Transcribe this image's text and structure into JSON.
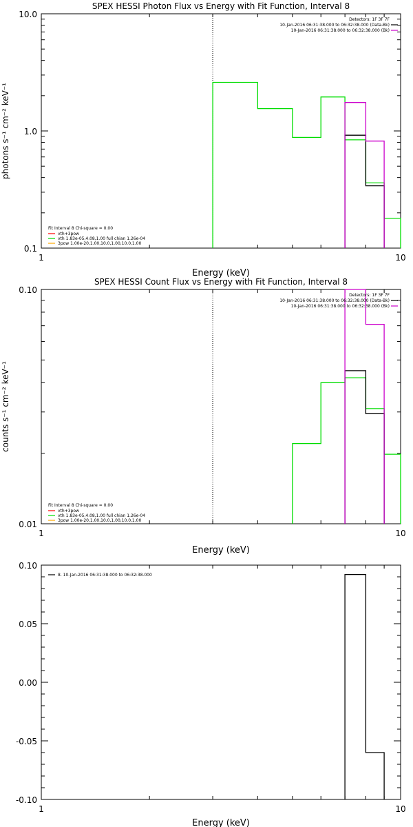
{
  "colors": {
    "background": "#ffffff",
    "axes": "#000000",
    "green": "#00dd00",
    "magenta": "#cc00cc",
    "black": "#000000",
    "red": "#ff0000",
    "orange": "#ffaa00"
  },
  "chart_data": [
    {
      "type": "line",
      "title": "SPEX HESSI Photon Flux vs Energy with Fit Function, Interval 8",
      "xlabel": "Energy (keV)",
      "ylabel": "photons s⁻¹ cm⁻² keV⁻¹",
      "xscale": "log",
      "yscale": "log",
      "xlim": [
        1,
        10
      ],
      "ylim": [
        0.1,
        10
      ],
      "xticks": [
        {
          "v": 1,
          "label": "1"
        },
        {
          "v": 10,
          "label": "10"
        }
      ],
      "yticks": [
        {
          "v": 0.1,
          "label": "0.1"
        },
        {
          "v": 1,
          "label": "1.0"
        },
        {
          "v": 10,
          "label": "10.0"
        }
      ],
      "vline": 3,
      "legend_top_right": {
        "title": "Detectors: 1F 3F 7F",
        "items": [
          {
            "text": "10-Jan-2016 06:31:38.000 to 06:32:38.000 (Data-Bk)",
            "color": "#000000"
          },
          {
            "text": "10-Jan-2016 06:31:38.000 to 06:32:38.000 (Bk)",
            "color": "#cc00cc"
          }
        ]
      },
      "legend_bottom_left": {
        "title": "Fit Interval  8    Chi-square = 0.00",
        "items": [
          {
            "text": "vth+3pow",
            "color": "#ff0000"
          },
          {
            "text": "vth  1.83e-05,4.08,1.00  full chian 1.26e-04",
            "color": "#00dd00"
          },
          {
            "text": "3pow  1.00e-20,1.00,10.0,1.00,10.0,1.00",
            "color": "#ffaa00"
          }
        ]
      },
      "series": [
        {
          "color": "#00dd00",
          "edges": [
            3,
            4,
            5,
            6,
            7,
            8,
            9,
            10
          ],
          "values": [
            2.6,
            1.55,
            0.88,
            1.95,
            0.84,
            0.36,
            0.18
          ]
        },
        {
          "color": "#000000",
          "edges": [
            7,
            8,
            9
          ],
          "values": [
            0.92,
            0.34
          ]
        },
        {
          "color": "#cc00cc",
          "edges": [
            7,
            8,
            9
          ],
          "values": [
            1.75,
            0.82
          ]
        }
      ]
    },
    {
      "type": "line",
      "title": "SPEX HESSI Count Flux vs Energy with Fit Function, Interval 8",
      "xlabel": "Energy (keV)",
      "ylabel": "counts s⁻¹ cm⁻² keV⁻¹",
      "xscale": "log",
      "yscale": "log",
      "xlim": [
        1,
        10
      ],
      "ylim": [
        0.01,
        0.1
      ],
      "xticks": [
        {
          "v": 1,
          "label": "1"
        },
        {
          "v": 10,
          "label": "10"
        }
      ],
      "yticks": [
        {
          "v": 0.01,
          "label": "0.01"
        },
        {
          "v": 0.1,
          "label": "0.10"
        }
      ],
      "vline": 3,
      "legend_top_right": {
        "title": "Detectors: 1F 3F 7F",
        "items": [
          {
            "text": "10-Jan-2016 06:31:38.000 to 06:32:38.000 (Data-Bk)",
            "color": "#000000"
          },
          {
            "text": "10-Jan-2016 06:31:38.000 to 06:32:38.000 (Bk)",
            "color": "#cc00cc"
          }
        ]
      },
      "legend_bottom_left": {
        "title": "Fit Interval  8    Chi-square = 0.00",
        "items": [
          {
            "text": "vth+3pow",
            "color": "#ff0000"
          },
          {
            "text": "vth  1.83e-05,4.08,1.00  full chian 1.26e-04",
            "color": "#00dd00"
          },
          {
            "text": "3pow  1.00e-20,1.00,10.0,1.00,10.0,1.00",
            "color": "#ffaa00"
          }
        ]
      },
      "series": [
        {
          "color": "#00dd00",
          "edges": [
            5,
            6,
            7,
            8,
            9,
            10
          ],
          "values": [
            0.022,
            0.04,
            0.042,
            0.031,
            0.0198
          ]
        },
        {
          "color": "#000000",
          "edges": [
            7,
            8,
            9
          ],
          "values": [
            0.045,
            0.0295
          ]
        },
        {
          "color": "#cc00cc",
          "edges": [
            7,
            8,
            9
          ],
          "values": [
            0.1,
            0.071
          ]
        }
      ]
    },
    {
      "type": "line",
      "title": "",
      "xlabel": "Energy (keV)",
      "ylabel": "",
      "xscale": "log",
      "yscale": "linear",
      "xlim": [
        1,
        10
      ],
      "ylim": [
        -0.1,
        0.1
      ],
      "xticks": [
        {
          "v": 1,
          "label": "1"
        },
        {
          "v": 10,
          "label": "10"
        }
      ],
      "yticks": [
        {
          "v": -0.1,
          "label": "-0.10"
        },
        {
          "v": -0.05,
          "label": "-0.05"
        },
        {
          "v": 0,
          "label": "0.00"
        },
        {
          "v": 0.05,
          "label": "0.05"
        },
        {
          "v": 0.1,
          "label": "0.10"
        }
      ],
      "vline": null,
      "legend_top_left": {
        "items": [
          {
            "text": "8. 10-Jan-2016 06:31:38.000 to 06:32:38.000",
            "color": "#000000"
          }
        ]
      },
      "series": [
        {
          "color": "#000000",
          "edges": [
            7,
            8,
            9
          ],
          "values": [
            0.092,
            -0.06
          ]
        }
      ]
    }
  ]
}
